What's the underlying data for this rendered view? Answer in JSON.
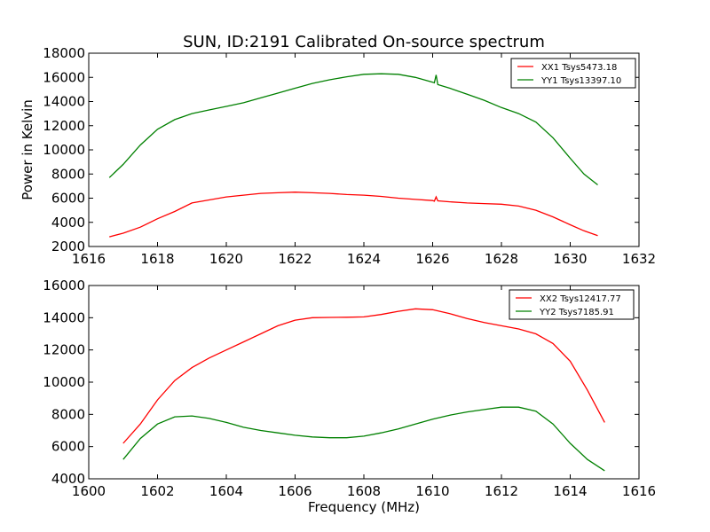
{
  "chart_data": [
    {
      "type": "line",
      "title": "SUN, ID:2191 Calibrated On-source spectrum",
      "xlabel": "",
      "ylabel": "Power in Kelvin",
      "xlim": [
        1616,
        1632
      ],
      "ylim": [
        2000,
        18000
      ],
      "xticks": [
        1616,
        1618,
        1620,
        1622,
        1624,
        1626,
        1628,
        1630,
        1632
      ],
      "yticks": [
        2000,
        4000,
        6000,
        8000,
        10000,
        12000,
        14000,
        16000,
        18000
      ],
      "legend_position": "top-right",
      "grid": false,
      "series": [
        {
          "name": "XX1 Tsys5473.18",
          "color": "#ff0000",
          "points": [
            [
              1616.6,
              2800
            ],
            [
              1617.0,
              3100
            ],
            [
              1617.5,
              3600
            ],
            [
              1618.0,
              4300
            ],
            [
              1618.5,
              4900
            ],
            [
              1619.0,
              5600
            ],
            [
              1619.5,
              5850
            ],
            [
              1620.0,
              6100
            ],
            [
              1620.5,
              6250
            ],
            [
              1621.0,
              6400
            ],
            [
              1621.5,
              6450
            ],
            [
              1622.0,
              6500
            ],
            [
              1622.5,
              6450
            ],
            [
              1623.0,
              6400
            ],
            [
              1623.5,
              6300
            ],
            [
              1624.0,
              6250
            ],
            [
              1624.5,
              6150
            ],
            [
              1625.0,
              6000
            ],
            [
              1625.5,
              5900
            ],
            [
              1626.0,
              5800
            ],
            [
              1626.05,
              5750
            ],
            [
              1626.1,
              6100
            ],
            [
              1626.15,
              5780
            ],
            [
              1626.5,
              5700
            ],
            [
              1627.0,
              5600
            ],
            [
              1627.5,
              5550
            ],
            [
              1628.0,
              5500
            ],
            [
              1628.5,
              5350
            ],
            [
              1629.0,
              5000
            ],
            [
              1629.5,
              4450
            ],
            [
              1630.0,
              3800
            ],
            [
              1630.4,
              3300
            ],
            [
              1630.8,
              2900
            ]
          ]
        },
        {
          "name": "YY1 Tsys13397.10",
          "color": "#008000",
          "points": [
            [
              1616.6,
              7700
            ],
            [
              1617.0,
              8800
            ],
            [
              1617.5,
              10400
            ],
            [
              1618.0,
              11700
            ],
            [
              1618.5,
              12500
            ],
            [
              1619.0,
              13000
            ],
            [
              1619.5,
              13300
            ],
            [
              1620.0,
              13600
            ],
            [
              1620.5,
              13900
            ],
            [
              1621.0,
              14300
            ],
            [
              1621.5,
              14700
            ],
            [
              1622.0,
              15100
            ],
            [
              1622.5,
              15500
            ],
            [
              1623.0,
              15800
            ],
            [
              1623.5,
              16050
            ],
            [
              1624.0,
              16250
            ],
            [
              1624.5,
              16300
            ],
            [
              1625.0,
              16250
            ],
            [
              1625.5,
              16000
            ],
            [
              1626.0,
              15600
            ],
            [
              1626.05,
              15550
            ],
            [
              1626.1,
              16200
            ],
            [
              1626.15,
              15400
            ],
            [
              1626.5,
              15100
            ],
            [
              1627.0,
              14600
            ],
            [
              1627.5,
              14100
            ],
            [
              1628.0,
              13500
            ],
            [
              1628.5,
              13000
            ],
            [
              1629.0,
              12300
            ],
            [
              1629.5,
              11000
            ],
            [
              1630.0,
              9300
            ],
            [
              1630.4,
              8000
            ],
            [
              1630.8,
              7100
            ]
          ]
        }
      ]
    },
    {
      "type": "line",
      "title": "",
      "xlabel": "Frequency (MHz)",
      "ylabel": "",
      "xlim": [
        1600,
        1616
      ],
      "ylim": [
        4000,
        16000
      ],
      "xticks": [
        1600,
        1602,
        1604,
        1606,
        1608,
        1610,
        1612,
        1614,
        1616
      ],
      "yticks": [
        4000,
        6000,
        8000,
        10000,
        12000,
        14000,
        16000
      ],
      "legend_position": "top-right",
      "grid": false,
      "series": [
        {
          "name": "XX2 Tsys12417.77",
          "color": "#ff0000",
          "points": [
            [
              1601.0,
              6200
            ],
            [
              1601.5,
              7400
            ],
            [
              1602.0,
              8900
            ],
            [
              1602.5,
              10100
            ],
            [
              1603.0,
              10900
            ],
            [
              1603.5,
              11500
            ],
            [
              1604.0,
              12000
            ],
            [
              1604.5,
              12500
            ],
            [
              1605.0,
              13000
            ],
            [
              1605.5,
              13500
            ],
            [
              1606.0,
              13850
            ],
            [
              1606.5,
              14000
            ],
            [
              1607.0,
              14020
            ],
            [
              1607.5,
              14030
            ],
            [
              1608.0,
              14050
            ],
            [
              1608.5,
              14200
            ],
            [
              1609.0,
              14400
            ],
            [
              1609.5,
              14550
            ],
            [
              1610.0,
              14500
            ],
            [
              1610.5,
              14250
            ],
            [
              1611.0,
              13950
            ],
            [
              1611.5,
              13700
            ],
            [
              1612.0,
              13500
            ],
            [
              1612.5,
              13300
            ],
            [
              1613.0,
              13000
            ],
            [
              1613.5,
              12400
            ],
            [
              1614.0,
              11300
            ],
            [
              1614.5,
              9500
            ],
            [
              1615.0,
              7500
            ]
          ]
        },
        {
          "name": "YY2 Tsys7185.91",
          "color": "#008000",
          "points": [
            [
              1601.0,
              5200
            ],
            [
              1601.5,
              6500
            ],
            [
              1602.0,
              7400
            ],
            [
              1602.5,
              7850
            ],
            [
              1603.0,
              7900
            ],
            [
              1603.5,
              7750
            ],
            [
              1604.0,
              7500
            ],
            [
              1604.5,
              7200
            ],
            [
              1605.0,
              7000
            ],
            [
              1605.5,
              6850
            ],
            [
              1606.0,
              6700
            ],
            [
              1606.5,
              6600
            ],
            [
              1607.0,
              6550
            ],
            [
              1607.5,
              6550
            ],
            [
              1608.0,
              6650
            ],
            [
              1608.5,
              6850
            ],
            [
              1609.0,
              7100
            ],
            [
              1609.5,
              7400
            ],
            [
              1610.0,
              7700
            ],
            [
              1610.5,
              7950
            ],
            [
              1611.0,
              8150
            ],
            [
              1611.5,
              8300
            ],
            [
              1612.0,
              8450
            ],
            [
              1612.5,
              8450
            ],
            [
              1613.0,
              8200
            ],
            [
              1613.5,
              7400
            ],
            [
              1614.0,
              6200
            ],
            [
              1614.5,
              5200
            ],
            [
              1615.0,
              4500
            ]
          ]
        }
      ]
    }
  ]
}
